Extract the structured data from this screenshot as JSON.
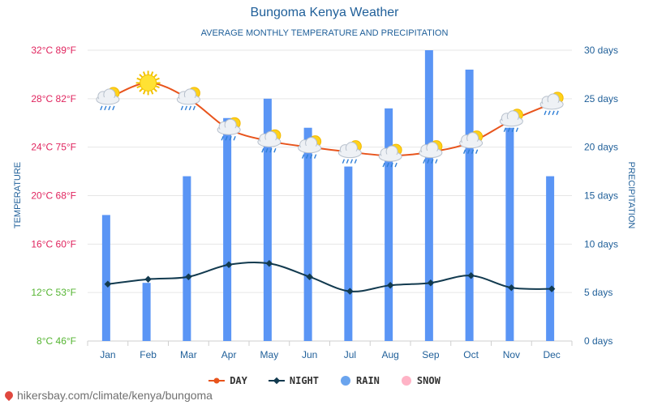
{
  "title": "Bungoma Kenya Weather",
  "subtitle": "AVERAGE MONTHLY TEMPERATURE AND PRECIPITATION",
  "watermark": "hikersbay.com/climate/kenya/bungoma",
  "legend": [
    {
      "label": "DAY",
      "color": "#e8541c",
      "kind": "line"
    },
    {
      "label": "NIGHT",
      "color": "#123a4f",
      "kind": "line"
    },
    {
      "label": "RAIN",
      "color": "#6aa4ee",
      "kind": "dot"
    },
    {
      "label": "SNOW",
      "color": "#ffb3c6",
      "kind": "dot"
    }
  ],
  "colors": {
    "day": "#e8541c",
    "night": "#123a4f",
    "rain": "#5a95f5",
    "grid": "#e6e6e6",
    "axis_title": "#1f5f99",
    "left_ticks_warm": "#e0245e",
    "left_ticks_cool": "#55b532"
  },
  "chart_data": {
    "type": "line+bar",
    "categories": [
      "Jan",
      "Feb",
      "Mar",
      "Apr",
      "May",
      "Jun",
      "Jul",
      "Aug",
      "Sep",
      "Oct",
      "Nov",
      "Dec"
    ],
    "series": [
      {
        "name": "DAY",
        "axis": "temperature",
        "unit": "°C",
        "values": [
          28.0,
          29.3,
          28.0,
          25.5,
          24.5,
          24.0,
          23.6,
          23.3,
          23.6,
          24.4,
          26.2,
          27.6
        ]
      },
      {
        "name": "NIGHT",
        "axis": "temperature",
        "unit": "°C",
        "values": [
          12.7,
          13.1,
          13.3,
          14.3,
          14.4,
          13.3,
          12.1,
          12.6,
          12.8,
          13.4,
          12.4,
          12.3
        ]
      },
      {
        "name": "RAIN",
        "axis": "precipitation",
        "unit": "days",
        "values": [
          13,
          6,
          17,
          23,
          25,
          22,
          18,
          24,
          30,
          28,
          22,
          17
        ]
      }
    ],
    "left_axis": {
      "label": "TEMPERATURE",
      "ylim": [
        8,
        32
      ],
      "ticks": [
        "8°C 46°F",
        "12°C 53°F",
        "16°C 60°F",
        "20°C 68°F",
        "24°C 75°F",
        "28°C 82°F",
        "32°C 89°F"
      ]
    },
    "right_axis": {
      "label": "PRECIPITATION",
      "ylim": [
        0,
        30
      ],
      "ticks": [
        "0 days",
        "5 days",
        "10 days",
        "15 days",
        "20 days",
        "25 days",
        "30 days"
      ]
    },
    "weather_icons": [
      "cloud-sun-rain-icon",
      "sun-icon",
      "cloud-sun-rain-icon",
      "cloud-sun-rain-icon",
      "cloud-sun-rain-icon",
      "cloud-sun-rain-icon",
      "cloud-sun-rain-icon",
      "cloud-sun-rain-icon",
      "cloud-sun-rain-icon",
      "cloud-sun-rain-icon",
      "cloud-sun-rain-icon",
      "cloud-sun-rain-icon"
    ],
    "grid": true,
    "legend_position": "bottom"
  }
}
